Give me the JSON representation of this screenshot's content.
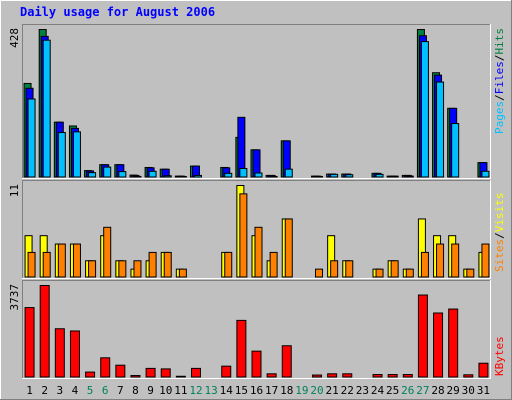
{
  "title": "Daily usage for August 2006",
  "colors": {
    "background": "#c0c0c0",
    "title": "#0000ff",
    "hits": "#008040",
    "files": "#0000ff",
    "pages": "#00c0ff",
    "visits": "#ffff00",
    "sites": "#ff8000",
    "kbytes": "#ff0000",
    "axis_weekday": "#000000",
    "axis_weekend": "#00805c"
  },
  "chart_data": [
    {
      "type": "bar",
      "panel": "hits-files-pages",
      "ymax_label": "428",
      "legend": [
        "Pages",
        "/",
        "Files",
        "/",
        "Hits"
      ],
      "categories": [
        "1",
        "2",
        "3",
        "4",
        "5",
        "6",
        "7",
        "8",
        "9",
        "10",
        "11",
        "12",
        "13",
        "14",
        "15",
        "16",
        "17",
        "18",
        "19",
        "20",
        "21",
        "22",
        "23",
        "24",
        "25",
        "26",
        "27",
        "28",
        "29",
        "30",
        "31"
      ],
      "ylim": [
        0,
        428
      ],
      "series": [
        {
          "name": "Hits",
          "values": [
            272,
            428,
            160,
            149,
            20,
            37,
            37,
            7,
            29,
            24,
            4,
            33,
            0,
            29,
            116,
            80,
            6,
            106,
            0,
            4,
            10,
            10,
            0,
            12,
            4,
            6,
            428,
            303,
            200,
            0,
            43
          ]
        },
        {
          "name": "Files",
          "values": [
            258,
            408,
            160,
            142,
            19,
            37,
            37,
            6,
            28,
            24,
            4,
            33,
            0,
            28,
            174,
            80,
            6,
            106,
            0,
            4,
            10,
            10,
            0,
            12,
            4,
            6,
            410,
            296,
            200,
            0,
            43
          ]
        },
        {
          "name": "Pages",
          "values": [
            227,
            397,
            130,
            132,
            14,
            30,
            17,
            3,
            18,
            5,
            2,
            6,
            0,
            12,
            26,
            13,
            3,
            24,
            0,
            3,
            9,
            8,
            0,
            9,
            4,
            4,
            393,
            276,
            156,
            0,
            18
          ]
        }
      ]
    },
    {
      "type": "bar",
      "panel": "visits-sites",
      "ymax_label": "11",
      "legend": [
        "Sites",
        "/",
        "Visits"
      ],
      "categories": [
        "1",
        "2",
        "3",
        "4",
        "5",
        "6",
        "7",
        "8",
        "9",
        "10",
        "11",
        "12",
        "13",
        "14",
        "15",
        "16",
        "17",
        "18",
        "19",
        "20",
        "21",
        "22",
        "23",
        "24",
        "25",
        "26",
        "27",
        "28",
        "29",
        "30",
        "31"
      ],
      "ylim": [
        0,
        11
      ],
      "series": [
        {
          "name": "Visits",
          "values": [
            5,
            5,
            4,
            4,
            2,
            5,
            2,
            1,
            2,
            3,
            1,
            0,
            0,
            3,
            11,
            5,
            2,
            7,
            0,
            0,
            5,
            2,
            0,
            1,
            2,
            1,
            7,
            5,
            5,
            1,
            3
          ]
        },
        {
          "name": "Sites",
          "values": [
            3,
            3,
            4,
            4,
            2,
            6,
            2,
            2,
            3,
            3,
            1,
            0,
            0,
            3,
            10,
            6,
            3,
            7,
            0,
            1,
            2,
            2,
            0,
            1,
            2,
            1,
            3,
            4,
            4,
            1,
            4
          ]
        }
      ]
    },
    {
      "type": "bar",
      "panel": "kbytes",
      "ymax_label": "3737",
      "legend": [
        "KBytes"
      ],
      "categories": [
        "1",
        "2",
        "3",
        "4",
        "5",
        "6",
        "7",
        "8",
        "9",
        "10",
        "11",
        "12",
        "13",
        "14",
        "15",
        "16",
        "17",
        "18",
        "19",
        "20",
        "21",
        "22",
        "23",
        "24",
        "25",
        "26",
        "27",
        "28",
        "29",
        "30",
        "31"
      ],
      "ylim": [
        0,
        3737
      ],
      "series": [
        {
          "name": "KBytes",
          "values": [
            2840,
            3737,
            1980,
            1890,
            220,
            800,
            500,
            80,
            370,
            350,
            50,
            370,
            0,
            460,
            2320,
            1070,
            150,
            1290,
            0,
            100,
            150,
            150,
            0,
            120,
            120,
            120,
            3350,
            2620,
            2780,
            110,
            580
          ]
        }
      ]
    }
  ],
  "x_axis": {
    "labels": [
      "1",
      "2",
      "3",
      "4",
      "5",
      "6",
      "7",
      "8",
      "9",
      "10",
      "11",
      "12",
      "13",
      "14",
      "15",
      "16",
      "17",
      "18",
      "19",
      "20",
      "21",
      "22",
      "23",
      "24",
      "25",
      "26",
      "27",
      "28",
      "29",
      "30",
      "31"
    ],
    "weekend_days": [
      5,
      6,
      12,
      13,
      19,
      20,
      26,
      27
    ]
  }
}
